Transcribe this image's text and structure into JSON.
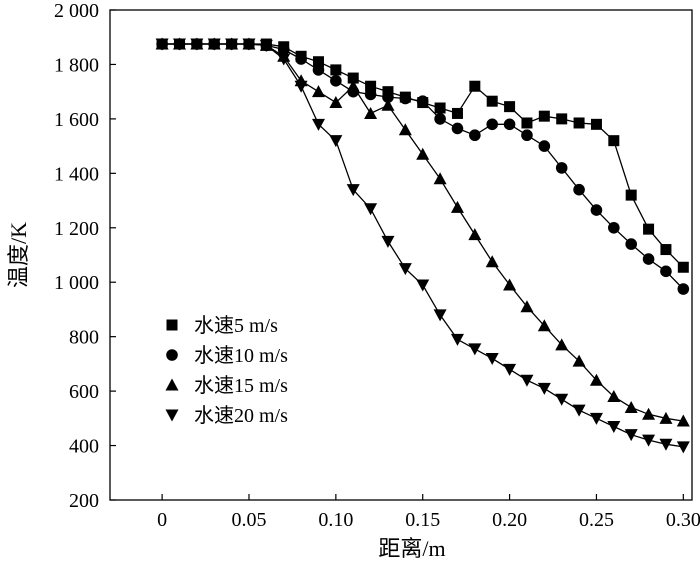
{
  "chart_data": {
    "type": "line",
    "title": "",
    "xlabel": "距离/m",
    "ylabel": "温度/K",
    "xlim": [
      -0.03,
      0.305
    ],
    "ylim": [
      200,
      2000
    ],
    "xticks": [
      0,
      0.05,
      0.1,
      0.15,
      0.2,
      0.25,
      0.3
    ],
    "xtick_labels": [
      "0",
      "0.05",
      "0.10",
      "0.15",
      "0.20",
      "0.25",
      "0.30"
    ],
    "yticks": [
      200,
      400,
      600,
      800,
      1000,
      1200,
      1400,
      1600,
      1800,
      2000
    ],
    "ytick_labels": [
      "200",
      "400",
      "600",
      "800",
      "1 000",
      "1 200",
      "1 400",
      "1 600",
      "1 800",
      "2 000"
    ],
    "grid": false,
    "legend_position": "left",
    "x": [
      0,
      0.01,
      0.02,
      0.03,
      0.04,
      0.05,
      0.06,
      0.07,
      0.08,
      0.09,
      0.1,
      0.11,
      0.12,
      0.13,
      0.14,
      0.15,
      0.16,
      0.17,
      0.18,
      0.19,
      0.2,
      0.21,
      0.22,
      0.23,
      0.24,
      0.25,
      0.26,
      0.27,
      0.28,
      0.29,
      0.3
    ],
    "series": [
      {
        "name": "水速5  m/s",
        "marker": "square",
        "values": [
          1875,
          1875,
          1875,
          1875,
          1875,
          1875,
          1875,
          1865,
          1830,
          1810,
          1780,
          1750,
          1720,
          1700,
          1680,
          1660,
          1640,
          1620,
          1720,
          1665,
          1645,
          1585,
          1610,
          1600,
          1585,
          1580,
          1520,
          1320,
          1195,
          1120,
          1055
        ]
      },
      {
        "name": "水速10 m/s",
        "marker": "circle",
        "values": [
          1875,
          1875,
          1875,
          1875,
          1875,
          1875,
          1870,
          1855,
          1820,
          1780,
          1740,
          1700,
          1690,
          1680,
          1675,
          1665,
          1600,
          1565,
          1540,
          1580,
          1580,
          1540,
          1500,
          1420,
          1340,
          1265,
          1200,
          1140,
          1085,
          1040,
          975
        ]
      },
      {
        "name": "水速15 m/s",
        "marker": "triangle-up",
        "values": [
          1875,
          1875,
          1875,
          1875,
          1875,
          1875,
          1870,
          1830,
          1740,
          1700,
          1660,
          1720,
          1620,
          1650,
          1560,
          1470,
          1380,
          1275,
          1175,
          1075,
          990,
          910,
          840,
          770,
          710,
          640,
          580,
          540,
          515,
          500,
          490
        ]
      },
      {
        "name": "水速20 m/s",
        "marker": "triangle-down",
        "values": [
          1875,
          1875,
          1875,
          1875,
          1875,
          1875,
          1870,
          1820,
          1720,
          1580,
          1520,
          1340,
          1270,
          1150,
          1050,
          990,
          880,
          790,
          755,
          720,
          680,
          640,
          610,
          570,
          530,
          500,
          470,
          440,
          420,
          405,
          395
        ]
      }
    ]
  }
}
